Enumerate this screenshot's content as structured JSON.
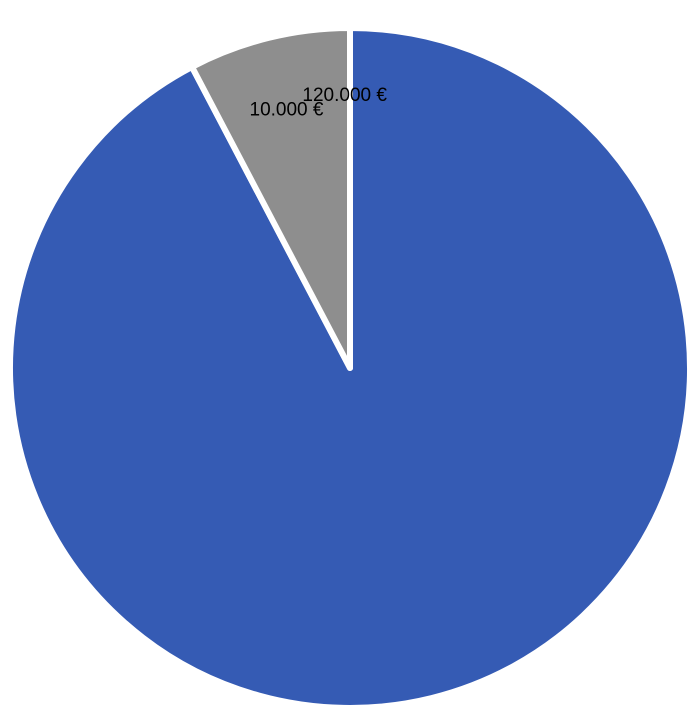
{
  "chart_data": {
    "type": "pie",
    "start_angle": "12 o'clock",
    "direction": "clockwise",
    "slices": [
      {
        "value": 120000,
        "data_label": "120.000 €",
        "color": "#355bb4"
      },
      {
        "value": 10000,
        "data_label": "10.000 €",
        "color": "#8e8e8e"
      }
    ],
    "legend": "none",
    "title": ""
  }
}
